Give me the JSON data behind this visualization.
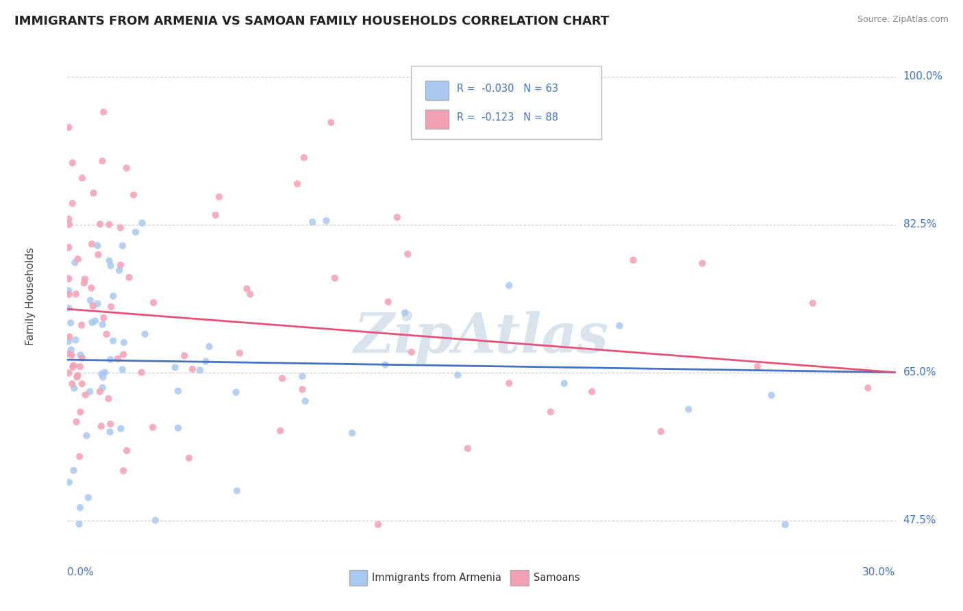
{
  "title": "IMMIGRANTS FROM ARMENIA VS SAMOAN FAMILY HOUSEHOLDS CORRELATION CHART",
  "source_text": "Source: ZipAtlas.com",
  "x_min": 0.0,
  "x_max": 30.0,
  "y_min": 44.0,
  "y_max": 104.0,
  "y_tick_vals": [
    47.5,
    65.0,
    82.5,
    100.0
  ],
  "ylabel_ticks": [
    "47.5%",
    "65.0%",
    "82.5%",
    "100.0%"
  ],
  "series1": {
    "label": "Immigrants from Armenia",
    "R": -0.03,
    "N": 63,
    "color_scatter": "#a8c8f0",
    "color_line": "#4472c4"
  },
  "series2": {
    "label": "Samoans",
    "R": -0.123,
    "N": 88,
    "color_scatter": "#f4a0b4",
    "color_line": "#e8507a"
  },
  "watermark": "ZipAtlas",
  "background_color": "#ffffff",
  "grid_color": "#c8c8c8",
  "title_fontsize": 13,
  "tick_label_color": "#4472c4",
  "ylabel": "Family Households"
}
